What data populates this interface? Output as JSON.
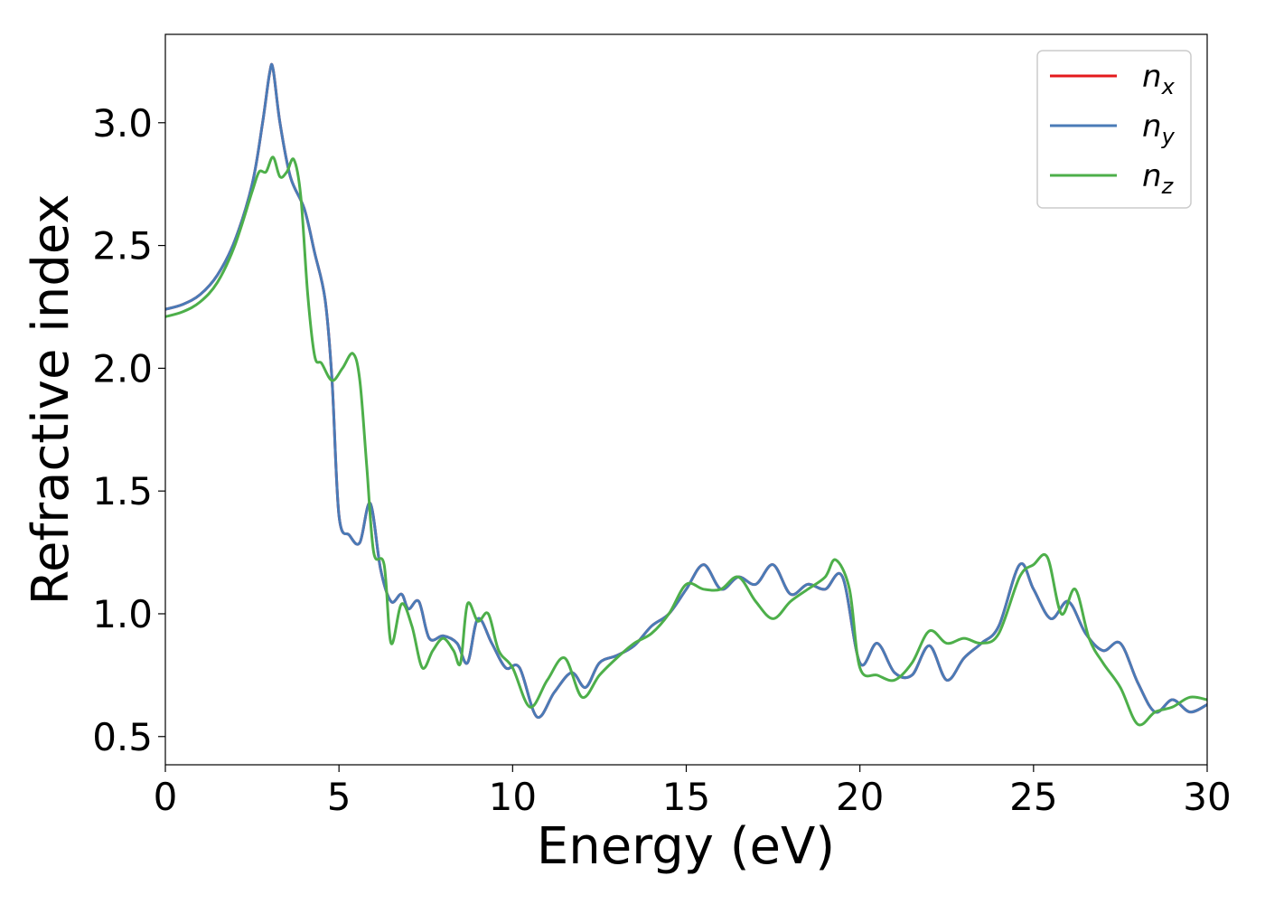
{
  "chart_data": {
    "type": "line",
    "xlabel": "Energy (eV)",
    "ylabel": "Refractive index",
    "xlim": [
      0,
      30
    ],
    "ylim": [
      0.385,
      3.36
    ],
    "xticks": [
      0,
      5,
      10,
      15,
      20,
      25,
      30
    ],
    "xtick_labels": [
      "0",
      "5",
      "10",
      "15",
      "20",
      "25",
      "30"
    ],
    "yticks": [
      0.5,
      1.0,
      1.5,
      2.0,
      2.5,
      3.0
    ],
    "ytick_labels": [
      "0.5",
      "1.0",
      "1.5",
      "2.0",
      "2.5",
      "3.0"
    ],
    "grid": false,
    "legend_position": "top-right",
    "series": [
      {
        "name": "n_x",
        "legend_base": "n",
        "legend_sub": "x",
        "color": "#e41a1c",
        "x": [
          0,
          0.5,
          1,
          1.5,
          2,
          2.5,
          2.8,
          3.0,
          3.1,
          3.3,
          3.6,
          4.0,
          4.3,
          4.6,
          4.8,
          5.0,
          5.3,
          5.6,
          5.9,
          6.2,
          6.5,
          6.8,
          7.0,
          7.3,
          7.6,
          8.0,
          8.4,
          8.7,
          9.0,
          9.4,
          9.8,
          10.2,
          10.7,
          11.2,
          11.7,
          12.1,
          12.5,
          13.0,
          13.5,
          14.0,
          14.5,
          15.0,
          15.5,
          16.0,
          16.5,
          17.0,
          17.5,
          18.0,
          18.5,
          19.0,
          19.5,
          20.0,
          20.5,
          21.0,
          21.5,
          22.0,
          22.5,
          23.0,
          23.5,
          24.0,
          24.6,
          25.0,
          25.5,
          26.0,
          26.5,
          27.0,
          27.5,
          28.0,
          28.5,
          29.0,
          29.5,
          30.0
        ],
        "y": [
          2.24,
          2.26,
          2.3,
          2.38,
          2.52,
          2.75,
          3.0,
          3.2,
          3.22,
          3.0,
          2.78,
          2.65,
          2.47,
          2.28,
          1.95,
          1.4,
          1.32,
          1.29,
          1.45,
          1.18,
          1.05,
          1.08,
          1.02,
          1.05,
          0.9,
          0.91,
          0.88,
          0.8,
          0.98,
          0.88,
          0.78,
          0.78,
          0.58,
          0.68,
          0.76,
          0.7,
          0.8,
          0.83,
          0.87,
          0.95,
          1.0,
          1.1,
          1.2,
          1.1,
          1.15,
          1.12,
          1.2,
          1.08,
          1.12,
          1.1,
          1.15,
          0.8,
          0.88,
          0.76,
          0.75,
          0.87,
          0.73,
          0.82,
          0.88,
          0.95,
          1.2,
          1.1,
          0.98,
          1.05,
          0.92,
          0.85,
          0.88,
          0.72,
          0.6,
          0.65,
          0.6,
          0.63
        ]
      },
      {
        "name": "n_y",
        "legend_base": "n",
        "legend_sub": "y",
        "color": "#4a7bb7",
        "x": [
          0,
          0.5,
          1,
          1.5,
          2,
          2.5,
          2.8,
          3.0,
          3.1,
          3.3,
          3.6,
          4.0,
          4.3,
          4.6,
          4.8,
          5.0,
          5.3,
          5.6,
          5.9,
          6.2,
          6.5,
          6.8,
          7.0,
          7.3,
          7.6,
          8.0,
          8.4,
          8.7,
          9.0,
          9.4,
          9.8,
          10.2,
          10.7,
          11.2,
          11.7,
          12.1,
          12.5,
          13.0,
          13.5,
          14.0,
          14.5,
          15.0,
          15.5,
          16.0,
          16.5,
          17.0,
          17.5,
          18.0,
          18.5,
          19.0,
          19.5,
          20.0,
          20.5,
          21.0,
          21.5,
          22.0,
          22.5,
          23.0,
          23.5,
          24.0,
          24.6,
          25.0,
          25.5,
          26.0,
          26.5,
          27.0,
          27.5,
          28.0,
          28.5,
          29.0,
          29.5,
          30.0
        ],
        "y": [
          2.24,
          2.26,
          2.3,
          2.38,
          2.52,
          2.75,
          3.0,
          3.2,
          3.22,
          3.0,
          2.78,
          2.65,
          2.47,
          2.28,
          1.95,
          1.4,
          1.32,
          1.29,
          1.45,
          1.18,
          1.05,
          1.08,
          1.02,
          1.05,
          0.9,
          0.91,
          0.88,
          0.8,
          0.98,
          0.88,
          0.78,
          0.78,
          0.58,
          0.68,
          0.76,
          0.7,
          0.8,
          0.83,
          0.87,
          0.95,
          1.0,
          1.1,
          1.2,
          1.1,
          1.15,
          1.12,
          1.2,
          1.08,
          1.12,
          1.1,
          1.15,
          0.8,
          0.88,
          0.76,
          0.75,
          0.87,
          0.73,
          0.82,
          0.88,
          0.95,
          1.2,
          1.1,
          0.98,
          1.05,
          0.92,
          0.85,
          0.88,
          0.72,
          0.6,
          0.65,
          0.6,
          0.63
        ]
      },
      {
        "name": "n_z",
        "legend_base": "n",
        "legend_sub": "z",
        "color": "#4daf4a",
        "x": [
          0,
          0.5,
          1,
          1.5,
          2,
          2.5,
          2.7,
          2.9,
          3.1,
          3.3,
          3.5,
          3.7,
          3.9,
          4.1,
          4.3,
          4.5,
          4.8,
          5.1,
          5.4,
          5.6,
          5.8,
          6.0,
          6.3,
          6.5,
          6.8,
          7.1,
          7.4,
          7.7,
          8.0,
          8.3,
          8.5,
          8.7,
          9.0,
          9.3,
          9.6,
          10.0,
          10.5,
          11.0,
          11.5,
          12.0,
          12.5,
          13.0,
          13.5,
          14.0,
          14.5,
          15.0,
          15.5,
          16.0,
          16.5,
          17.0,
          17.5,
          18.0,
          18.5,
          19.0,
          19.3,
          19.7,
          20.0,
          20.5,
          21.0,
          21.5,
          22.0,
          22.5,
          23.0,
          23.5,
          24.0,
          24.6,
          25.0,
          25.4,
          25.8,
          26.2,
          26.6,
          27.0,
          27.5,
          28.0,
          28.5,
          29.0,
          29.5,
          30.0
        ],
        "y": [
          2.21,
          2.23,
          2.27,
          2.35,
          2.5,
          2.72,
          2.8,
          2.8,
          2.86,
          2.78,
          2.8,
          2.85,
          2.7,
          2.3,
          2.05,
          2.02,
          1.95,
          2.0,
          2.06,
          1.95,
          1.6,
          1.25,
          1.2,
          0.88,
          1.04,
          0.95,
          0.78,
          0.85,
          0.9,
          0.85,
          0.8,
          1.04,
          0.97,
          1.0,
          0.85,
          0.78,
          0.62,
          0.73,
          0.82,
          0.66,
          0.75,
          0.82,
          0.88,
          0.92,
          1.0,
          1.12,
          1.1,
          1.1,
          1.15,
          1.05,
          0.98,
          1.05,
          1.1,
          1.15,
          1.22,
          1.1,
          0.78,
          0.75,
          0.73,
          0.8,
          0.93,
          0.88,
          0.9,
          0.88,
          0.92,
          1.15,
          1.2,
          1.23,
          1.0,
          1.1,
          0.9,
          0.8,
          0.7,
          0.55,
          0.6,
          0.62,
          0.66,
          0.65
        ]
      }
    ]
  }
}
